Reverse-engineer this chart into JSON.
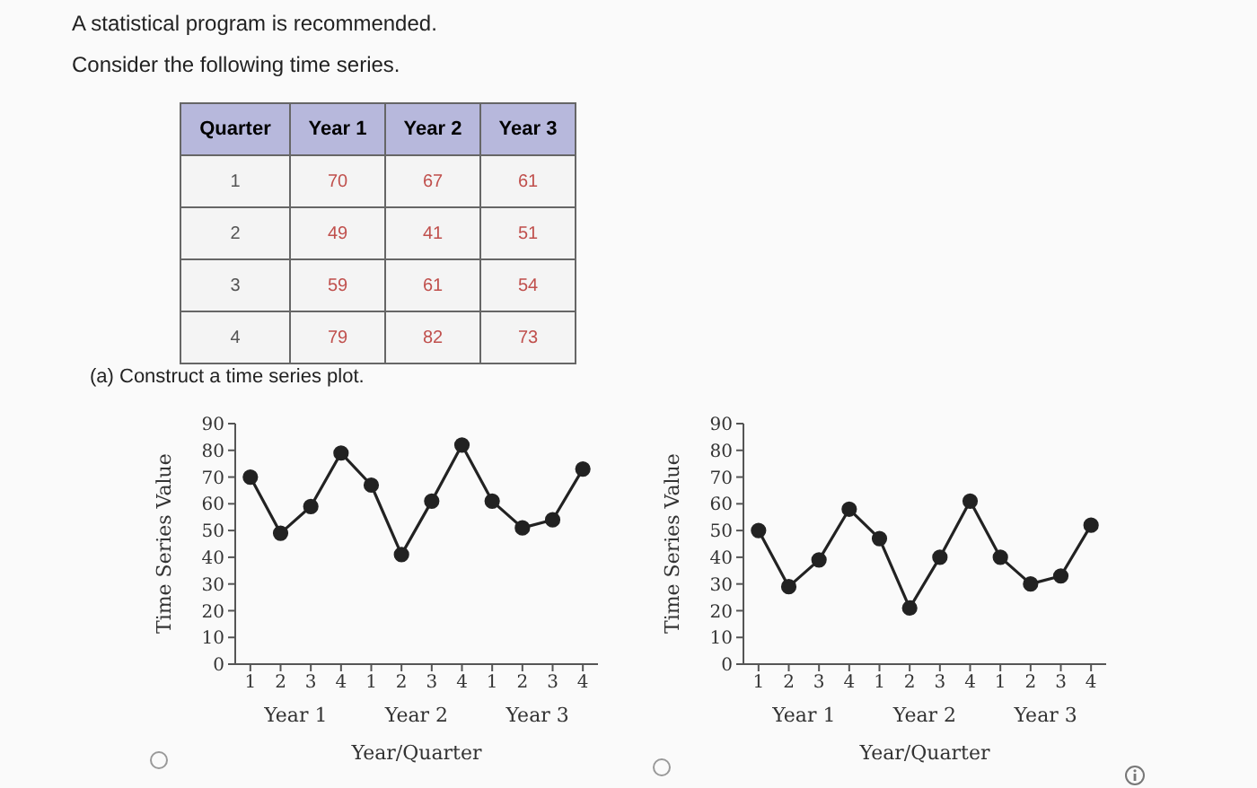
{
  "chart_data": [
    {
      "type": "heatmap",
      "title": "A statistical program is recommended.",
      "subtitle": "Consider the following time series.",
      "ylabel": "Quarter",
      "categories": [
        "Year 1",
        "Year 2",
        "Year 3"
      ],
      "y_categories": [
        "1",
        "2",
        "3",
        "4"
      ],
      "cells": [
        [
          70,
          67,
          61
        ],
        [
          49,
          41,
          51
        ],
        [
          59,
          61,
          54
        ],
        [
          79,
          82,
          73
        ]
      ],
      "data_labels": true
    },
    {
      "type": "line",
      "xlabel": "Year/Quarter",
      "ylabel": "Time Series Value",
      "annotations": [
        "(a) Construct a time series plot.",
        "Year 1",
        "Year 2",
        "Year 3"
      ],
      "categories": [
        "1",
        "2",
        "3",
        "4",
        "1",
        "2",
        "3",
        "4",
        "1",
        "2",
        "3",
        "4"
      ],
      "values": [
        70,
        49,
        59,
        79,
        67,
        41,
        61,
        82,
        61,
        51,
        54,
        73
      ],
      "color": "#222222",
      "ylim": [
        0,
        90
      ],
      "yticks": [
        0,
        10,
        20,
        30,
        40,
        50,
        60,
        70,
        80,
        90
      ],
      "marker": "circle"
    },
    {
      "type": "line",
      "xlabel": "Year/Quarter",
      "ylabel": "Time Series Value",
      "annotations": [
        "Year 1",
        "Year 2",
        "Year 3"
      ],
      "categories": [
        "1",
        "2",
        "3",
        "4",
        "1",
        "2",
        "3",
        "4",
        "1",
        "2",
        "3",
        "4"
      ],
      "values": [
        50,
        29,
        39,
        58,
        47,
        21,
        40,
        61,
        40,
        30,
        33,
        52
      ],
      "color": "#222222",
      "ylim": [
        0,
        90
      ],
      "yticks": [
        0,
        10,
        20,
        30,
        40,
        50,
        60,
        70,
        80,
        90
      ],
      "marker": "circle"
    }
  ]
}
